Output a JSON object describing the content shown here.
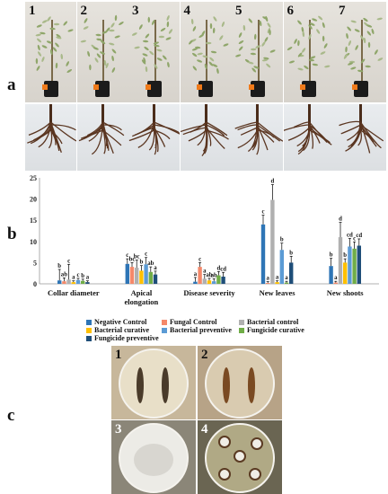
{
  "panels": {
    "a": "a",
    "b": "b",
    "c": "c"
  },
  "photo_numbers_a": [
    "1",
    "2",
    "3",
    "4",
    "5",
    "6",
    "7"
  ],
  "photo_numbers_c": [
    "1",
    "2",
    "3",
    "4"
  ],
  "chart_data": {
    "type": "bar",
    "categories": [
      "Collar diameter",
      "Apical elongation",
      "Disease severity",
      "New leaves",
      "New shoots"
    ],
    "category_labels": [
      [
        "Collar diameter"
      ],
      [
        "Apical",
        "elongation"
      ],
      [
        "Disease severity"
      ],
      [
        "New leaves"
      ],
      [
        "New shoots"
      ]
    ],
    "ylim": [
      0,
      25
    ],
    "yticks": [
      0,
      5,
      10,
      15,
      20,
      25
    ],
    "series": [
      {
        "name": "Negative Control",
        "color": "#2e75b6",
        "values": [
          0.8,
          4.7,
          0.5,
          14.0,
          4.2
        ],
        "errors": [
          2.6,
          1.2,
          1.0,
          2.2,
          1.8
        ],
        "letters": [
          "b",
          "c",
          "a",
          "c",
          "b"
        ]
      },
      {
        "name": "Fungal Control",
        "color": "#f4886a",
        "values": [
          0.6,
          4.0,
          4.0,
          0.2,
          0.3
        ],
        "errors": [
          0.8,
          1.0,
          1.0,
          0.3,
          0.3
        ],
        "letters": [
          "ab",
          "bc",
          "c",
          "a",
          "a"
        ]
      },
      {
        "name": "Bacterial control",
        "color": "#b0b0b0",
        "values": [
          1.0,
          3.8,
          1.2,
          19.8,
          11.0
        ],
        "errors": [
          3.6,
          1.8,
          1.0,
          3.6,
          3.5
        ],
        "letters": [
          "c",
          "bc",
          "a",
          "d",
          "d"
        ]
      },
      {
        "name": "Bacterial curative",
        "color": "#ffc000",
        "values": [
          0.4,
          3.1,
          0.8,
          0.4,
          5.0
        ],
        "errors": [
          0.3,
          1.2,
          0.5,
          0.3,
          0.9
        ],
        "letters": [
          "a",
          "b",
          "ab",
          "a",
          "b"
        ]
      },
      {
        "name": "Bacterial preventive",
        "color": "#5b9bd5",
        "values": [
          0.9,
          4.6,
          0.6,
          8.0,
          8.8
        ],
        "errors": [
          0.4,
          1.6,
          0.6,
          1.6,
          1.9
        ],
        "letters": [
          "c",
          "c",
          "ab",
          "b",
          "cd"
        ]
      },
      {
        "name": "Fungicide curative",
        "color": "#70ad47",
        "values": [
          0.7,
          2.8,
          2.0,
          0.3,
          8.3
        ],
        "errors": [
          0.4,
          1.2,
          0.9,
          0.3,
          1.6
        ],
        "letters": [
          "b",
          "ab",
          "d",
          "a",
          "c"
        ]
      },
      {
        "name": "Fungicide preventive",
        "color": "#1f4e79",
        "values": [
          0.4,
          2.2,
          1.7,
          5.0,
          9.0
        ],
        "errors": [
          0.3,
          0.8,
          1.0,
          1.5,
          1.6
        ],
        "letters": [
          "a",
          "a",
          "cd",
          "b",
          "cd"
        ]
      }
    ],
    "legend_position": "bottom",
    "grid": false
  }
}
